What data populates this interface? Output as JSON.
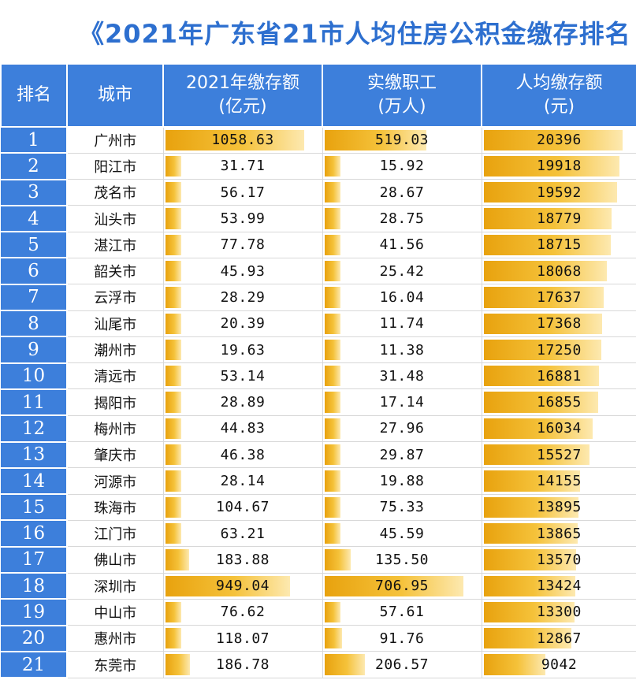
{
  "chart_data": {
    "type": "table",
    "title": "《2021年广东省21市人均住房公积金缴存排名",
    "columns": [
      {
        "line1": "排名",
        "line2": ""
      },
      {
        "line1": "城市",
        "line2": ""
      },
      {
        "line1": "2021年缴存额",
        "line2": "(亿元)"
      },
      {
        "line1": "实缴职工",
        "line2": "(万人)"
      },
      {
        "line1": "人均缴存额",
        "line2": "(元)"
      }
    ],
    "rows": [
      {
        "rank": "1",
        "city": "广州市",
        "amount": "1058.63",
        "employees": "519.03",
        "per_capita": "20396"
      },
      {
        "rank": "2",
        "city": "阳江市",
        "amount": "31.71",
        "employees": "15.92",
        "per_capita": "19918"
      },
      {
        "rank": "3",
        "city": "茂名市",
        "amount": "56.17",
        "employees": "28.67",
        "per_capita": "19592"
      },
      {
        "rank": "4",
        "city": "汕头市",
        "amount": "53.99",
        "employees": "28.75",
        "per_capita": "18779"
      },
      {
        "rank": "5",
        "city": "湛江市",
        "amount": "77.78",
        "employees": "41.56",
        "per_capita": "18715"
      },
      {
        "rank": "6",
        "city": "韶关市",
        "amount": "45.93",
        "employees": "25.42",
        "per_capita": "18068"
      },
      {
        "rank": "7",
        "city": "云浮市",
        "amount": "28.29",
        "employees": "16.04",
        "per_capita": "17637"
      },
      {
        "rank": "8",
        "city": "汕尾市",
        "amount": "20.39",
        "employees": "11.74",
        "per_capita": "17368"
      },
      {
        "rank": "9",
        "city": "潮州市",
        "amount": "19.63",
        "employees": "11.38",
        "per_capita": "17250"
      },
      {
        "rank": "10",
        "city": "清远市",
        "amount": "53.14",
        "employees": "31.48",
        "per_capita": "16881"
      },
      {
        "rank": "11",
        "city": "揭阳市",
        "amount": "28.89",
        "employees": "17.14",
        "per_capita": "16855"
      },
      {
        "rank": "12",
        "city": "梅州市",
        "amount": "44.83",
        "employees": "27.96",
        "per_capita": "16034"
      },
      {
        "rank": "13",
        "city": "肇庆市",
        "amount": "46.38",
        "employees": "29.87",
        "per_capita": "15527"
      },
      {
        "rank": "14",
        "city": "河源市",
        "amount": "28.14",
        "employees": "19.88",
        "per_capita": "14155"
      },
      {
        "rank": "15",
        "city": "珠海市",
        "amount": "104.67",
        "employees": "75.33",
        "per_capita": "13895"
      },
      {
        "rank": "16",
        "city": "江门市",
        "amount": "63.21",
        "employees": "45.59",
        "per_capita": "13865"
      },
      {
        "rank": "17",
        "city": "佛山市",
        "amount": "183.88",
        "employees": "135.50",
        "per_capita": "13570"
      },
      {
        "rank": "18",
        "city": "深圳市",
        "amount": "949.04",
        "employees": "706.95",
        "per_capita": "13424"
      },
      {
        "rank": "19",
        "city": "中山市",
        "amount": "76.62",
        "employees": "57.61",
        "per_capita": "13300"
      },
      {
        "rank": "20",
        "city": "惠州市",
        "amount": "118.07",
        "employees": "91.76",
        "per_capita": "12867"
      },
      {
        "rank": "21",
        "city": "东莞市",
        "amount": "186.78",
        "employees": "206.57",
        "per_capita": "9042"
      }
    ]
  },
  "colors": {
    "header_blue": "#3d7fdb",
    "title_blue": "#2d6fcf",
    "bar_gold": "#f5c23a"
  }
}
